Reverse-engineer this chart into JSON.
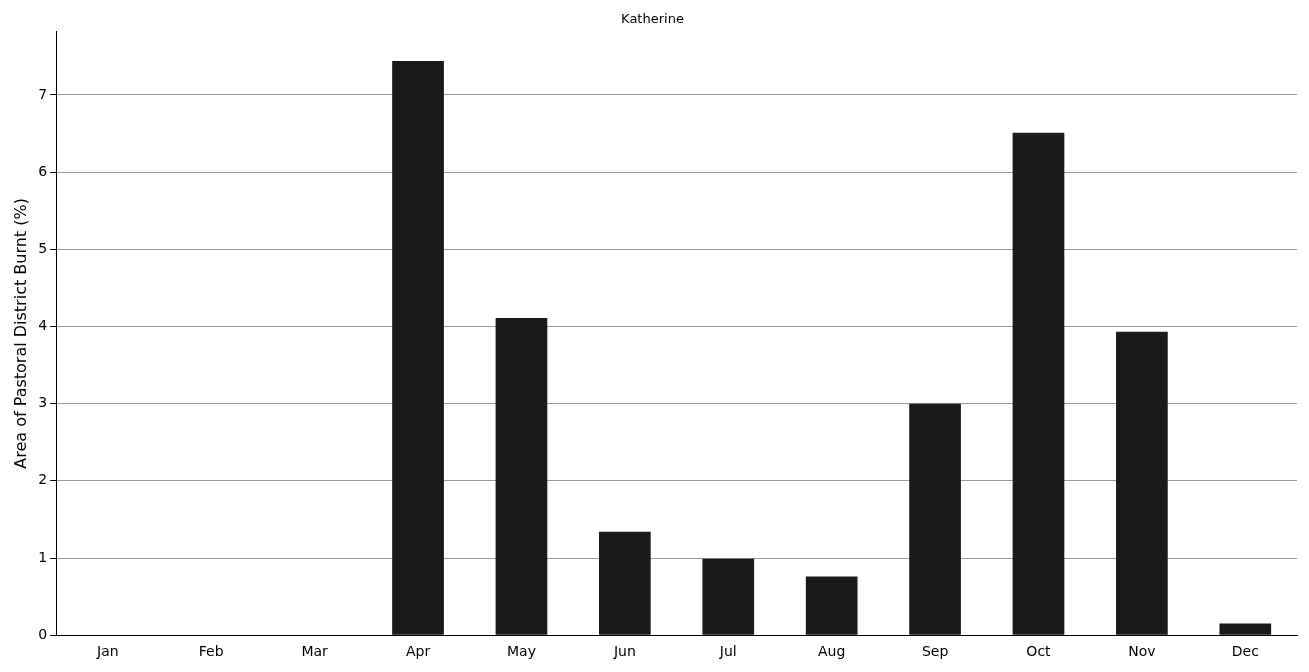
{
  "chart_data": {
    "type": "bar",
    "title": "Katherine",
    "ylabel": "Area of Pastoral District Burnt (%)",
    "categories": [
      "Jan",
      "Feb",
      "Mar",
      "Apr",
      "May",
      "Jun",
      "Jul",
      "Aug",
      "Sep",
      "Oct",
      "Nov",
      "Dec"
    ],
    "values": [
      0,
      0,
      0,
      7.44,
      4.11,
      1.34,
      0.99,
      0.76,
      3.0,
      6.51,
      3.93,
      0.15
    ],
    "color": "#1a1a1a",
    "ylim": [
      0,
      7.82
    ],
    "yticks": [
      0,
      1,
      2,
      3,
      4,
      5,
      6,
      7
    ],
    "grid": "y",
    "legend": false
  }
}
